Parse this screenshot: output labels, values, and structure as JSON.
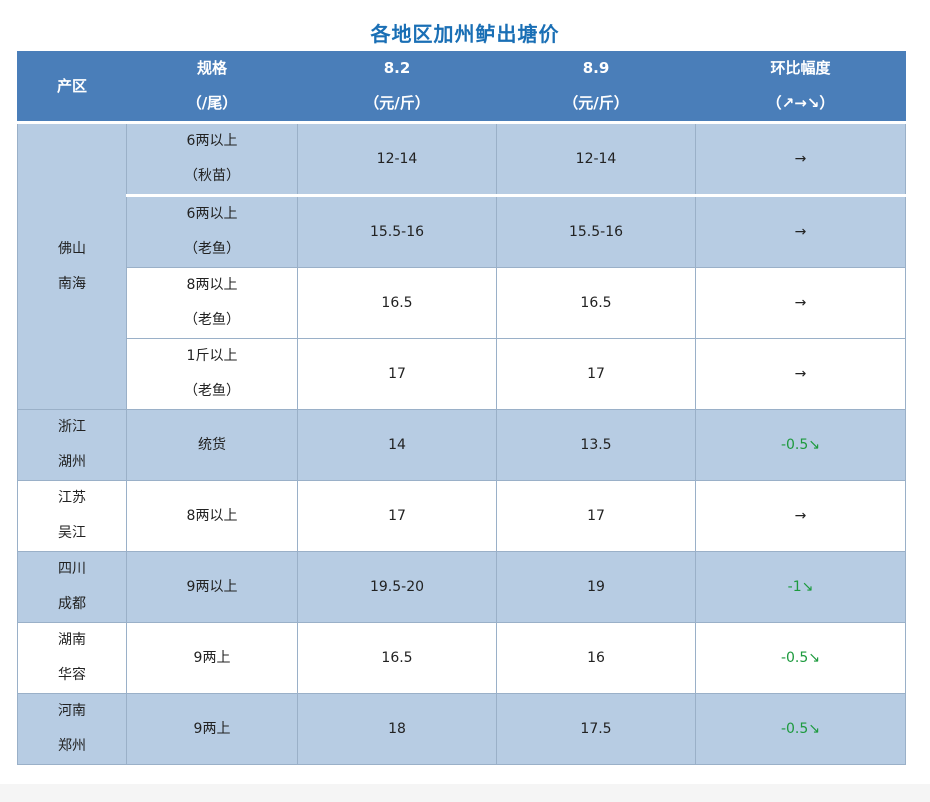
{
  "title": "各地区加州鲈出塘价",
  "headers": {
    "region": "产区",
    "spec": [
      "规格",
      "（/尾）"
    ],
    "d1": [
      "8.2",
      "（元/斤）"
    ],
    "d2": [
      "8.9",
      "（元/斤）"
    ],
    "change": [
      "环比幅度",
      "（↗→↘）"
    ]
  },
  "regions": [
    {
      "name": [
        "佛山",
        "南海"
      ],
      "rows": [
        {
          "spec": [
            "6两以上",
            "（秋苗）"
          ],
          "d1": "12-14",
          "d2": "12-14",
          "change": "→"
        },
        {
          "spec": [
            "6两以上",
            "（老鱼）"
          ],
          "d1": "15.5-16",
          "d2": "15.5-16",
          "change": "→"
        },
        {
          "spec": [
            "8两以上",
            "（老鱼）"
          ],
          "d1": "16.5",
          "d2": "16.5",
          "change": "→"
        },
        {
          "spec": [
            "1斤以上",
            "（老鱼）"
          ],
          "d1": "17",
          "d2": "17",
          "change": "→"
        }
      ]
    },
    {
      "name": [
        "浙江",
        "湖州"
      ],
      "spec": "统货",
      "d1": "14",
      "d2": "13.5",
      "change": "-0.5↘"
    },
    {
      "name": [
        "江苏",
        "吴江"
      ],
      "spec": "8两以上",
      "d1": "17",
      "d2": "17",
      "change": "→"
    },
    {
      "name": [
        "四川",
        "成都"
      ],
      "spec": "9两以上",
      "d1": "19.5-20",
      "d2": "19",
      "change": "-1↘"
    },
    {
      "name": [
        "湖南",
        "华容"
      ],
      "spec": "9两上",
      "d1": "16.5",
      "d2": "16",
      "change": "-0.5↘"
    },
    {
      "name": [
        "河南",
        "郑州"
      ],
      "spec": "9两上",
      "d1": "18",
      "d2": "17.5",
      "change": "-0.5↘"
    }
  ],
  "colors": {
    "header_bg": "#4a7eb9",
    "row_blue": "#b7cce3",
    "title": "#1a6fb5",
    "down": "#1d9a3e"
  }
}
